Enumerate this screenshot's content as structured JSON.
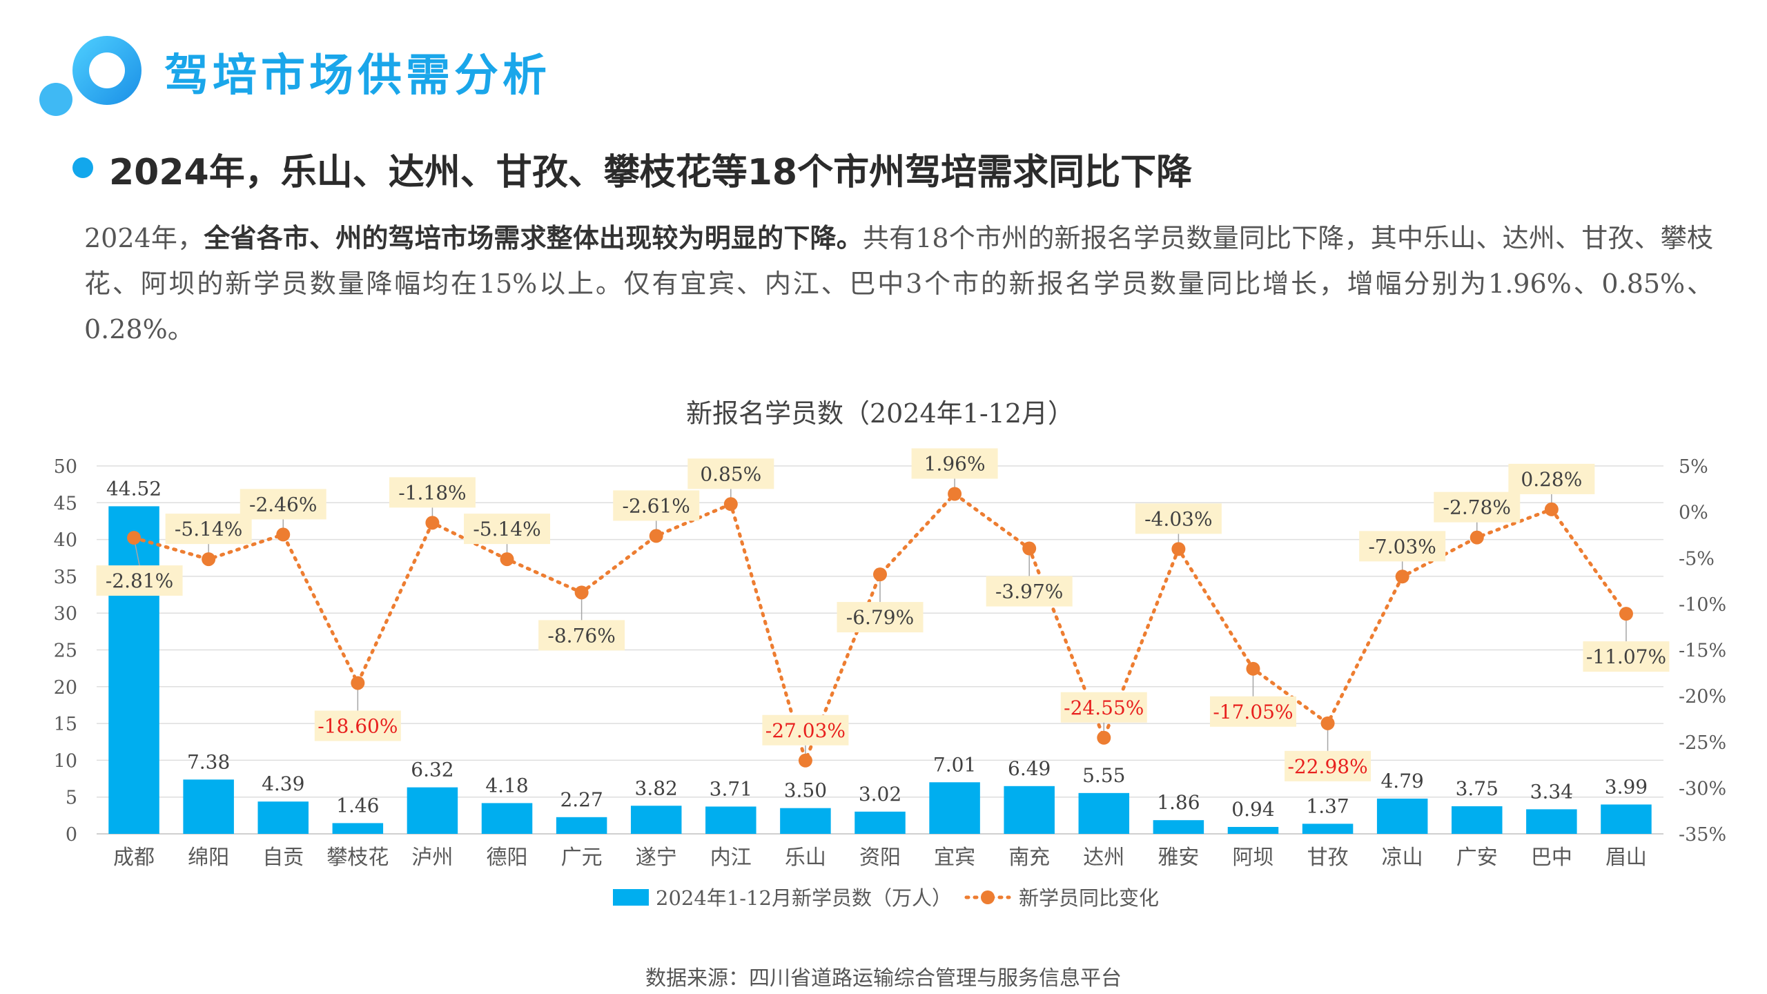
{
  "header": {
    "title": "驾培市场供需分析",
    "subtitle": "2024年，乐山、达州、甘孜、攀枝花等18个市州驾培需求同比下降",
    "accent_color": "#1aa6ea"
  },
  "summary": {
    "lead": "2024年，",
    "emphasis": "全省各市、州的驾培市场需求整体出现较为明显的下降。",
    "body": "共有18个市州的新报名学员数量同比下降，其中乐山、达州、甘孜、攀枝花、阿坝的新学员数量降幅均在15%以上。仅有宜宾、内江、巴中3个市的新报名学员数量同比增长，增幅分别为1.96%、0.85%、0.28%。"
  },
  "chart_data": {
    "type": "bar",
    "title": "新报名学员数（2024年1-12月）",
    "categories": [
      "成都",
      "绵阳",
      "自贡",
      "攀枝花",
      "泸州",
      "德阳",
      "广元",
      "遂宁",
      "内江",
      "乐山",
      "资阳",
      "宜宾",
      "南充",
      "达州",
      "雅安",
      "阿坝",
      "甘孜",
      "凉山",
      "广安",
      "巴中",
      "眉山"
    ],
    "series": [
      {
        "name": "2024年1-12月新学员数（万人）",
        "type": "bar",
        "axis": "left",
        "color": "#00aeef",
        "values": [
          44.52,
          7.38,
          4.39,
          1.46,
          6.32,
          4.18,
          2.27,
          3.82,
          3.71,
          3.5,
          3.02,
          7.01,
          6.49,
          5.55,
          1.86,
          0.94,
          1.37,
          4.79,
          3.75,
          3.34,
          3.99
        ],
        "labels": [
          "44.52",
          "7.38",
          "4.39",
          "1.46",
          "6.32",
          "4.18",
          "2.27",
          "3.82",
          "3.71",
          "3.50",
          "3.02",
          "7.01",
          "6.49",
          "5.55",
          "1.86",
          "0.94",
          "1.37",
          "4.79",
          "3.75",
          "3.34",
          "3.99"
        ]
      },
      {
        "name": "新学员同比变化",
        "type": "line",
        "axis": "right",
        "color": "#ed7d31",
        "values": [
          -2.81,
          -5.14,
          -2.46,
          -18.6,
          -1.18,
          -5.14,
          -8.76,
          -2.61,
          0.85,
          -27.03,
          -6.79,
          1.96,
          -3.97,
          -24.55,
          -4.03,
          -17.05,
          -22.98,
          -7.03,
          -2.78,
          0.28,
          -11.07
        ],
        "labels": [
          "-2.81%",
          "-5.14%",
          "-2.46%",
          "-18.60%",
          "-1.18%",
          "-5.14%",
          "-8.76%",
          "-2.61%",
          "0.85%",
          "-27.03%",
          "-6.79%",
          "1.96%",
          "-3.97%",
          "-24.55%",
          "-4.03%",
          "-17.05%",
          "-22.98%",
          "-7.03%",
          "-2.78%",
          "0.28%",
          "-11.07%"
        ],
        "highlight_color": "#e8201e",
        "highlight_threshold": -15,
        "label_bg": "#fdf1cc"
      }
    ],
    "y_left": {
      "min": 0,
      "max": 50,
      "step": 5,
      "ticks": [
        "0",
        "5",
        "10",
        "15",
        "20",
        "25",
        "30",
        "35",
        "40",
        "45",
        "50"
      ]
    },
    "y_right": {
      "min": -35,
      "max": 5,
      "step": 5,
      "ticks": [
        "-35%",
        "-30%",
        "-25%",
        "-20%",
        "-15%",
        "-10%",
        "-5%",
        "0%",
        "5%"
      ]
    },
    "grid": true,
    "legend_position": "bottom"
  },
  "footer": {
    "source": "数据来源：四川省道路运输综合管理与服务信息平台"
  }
}
